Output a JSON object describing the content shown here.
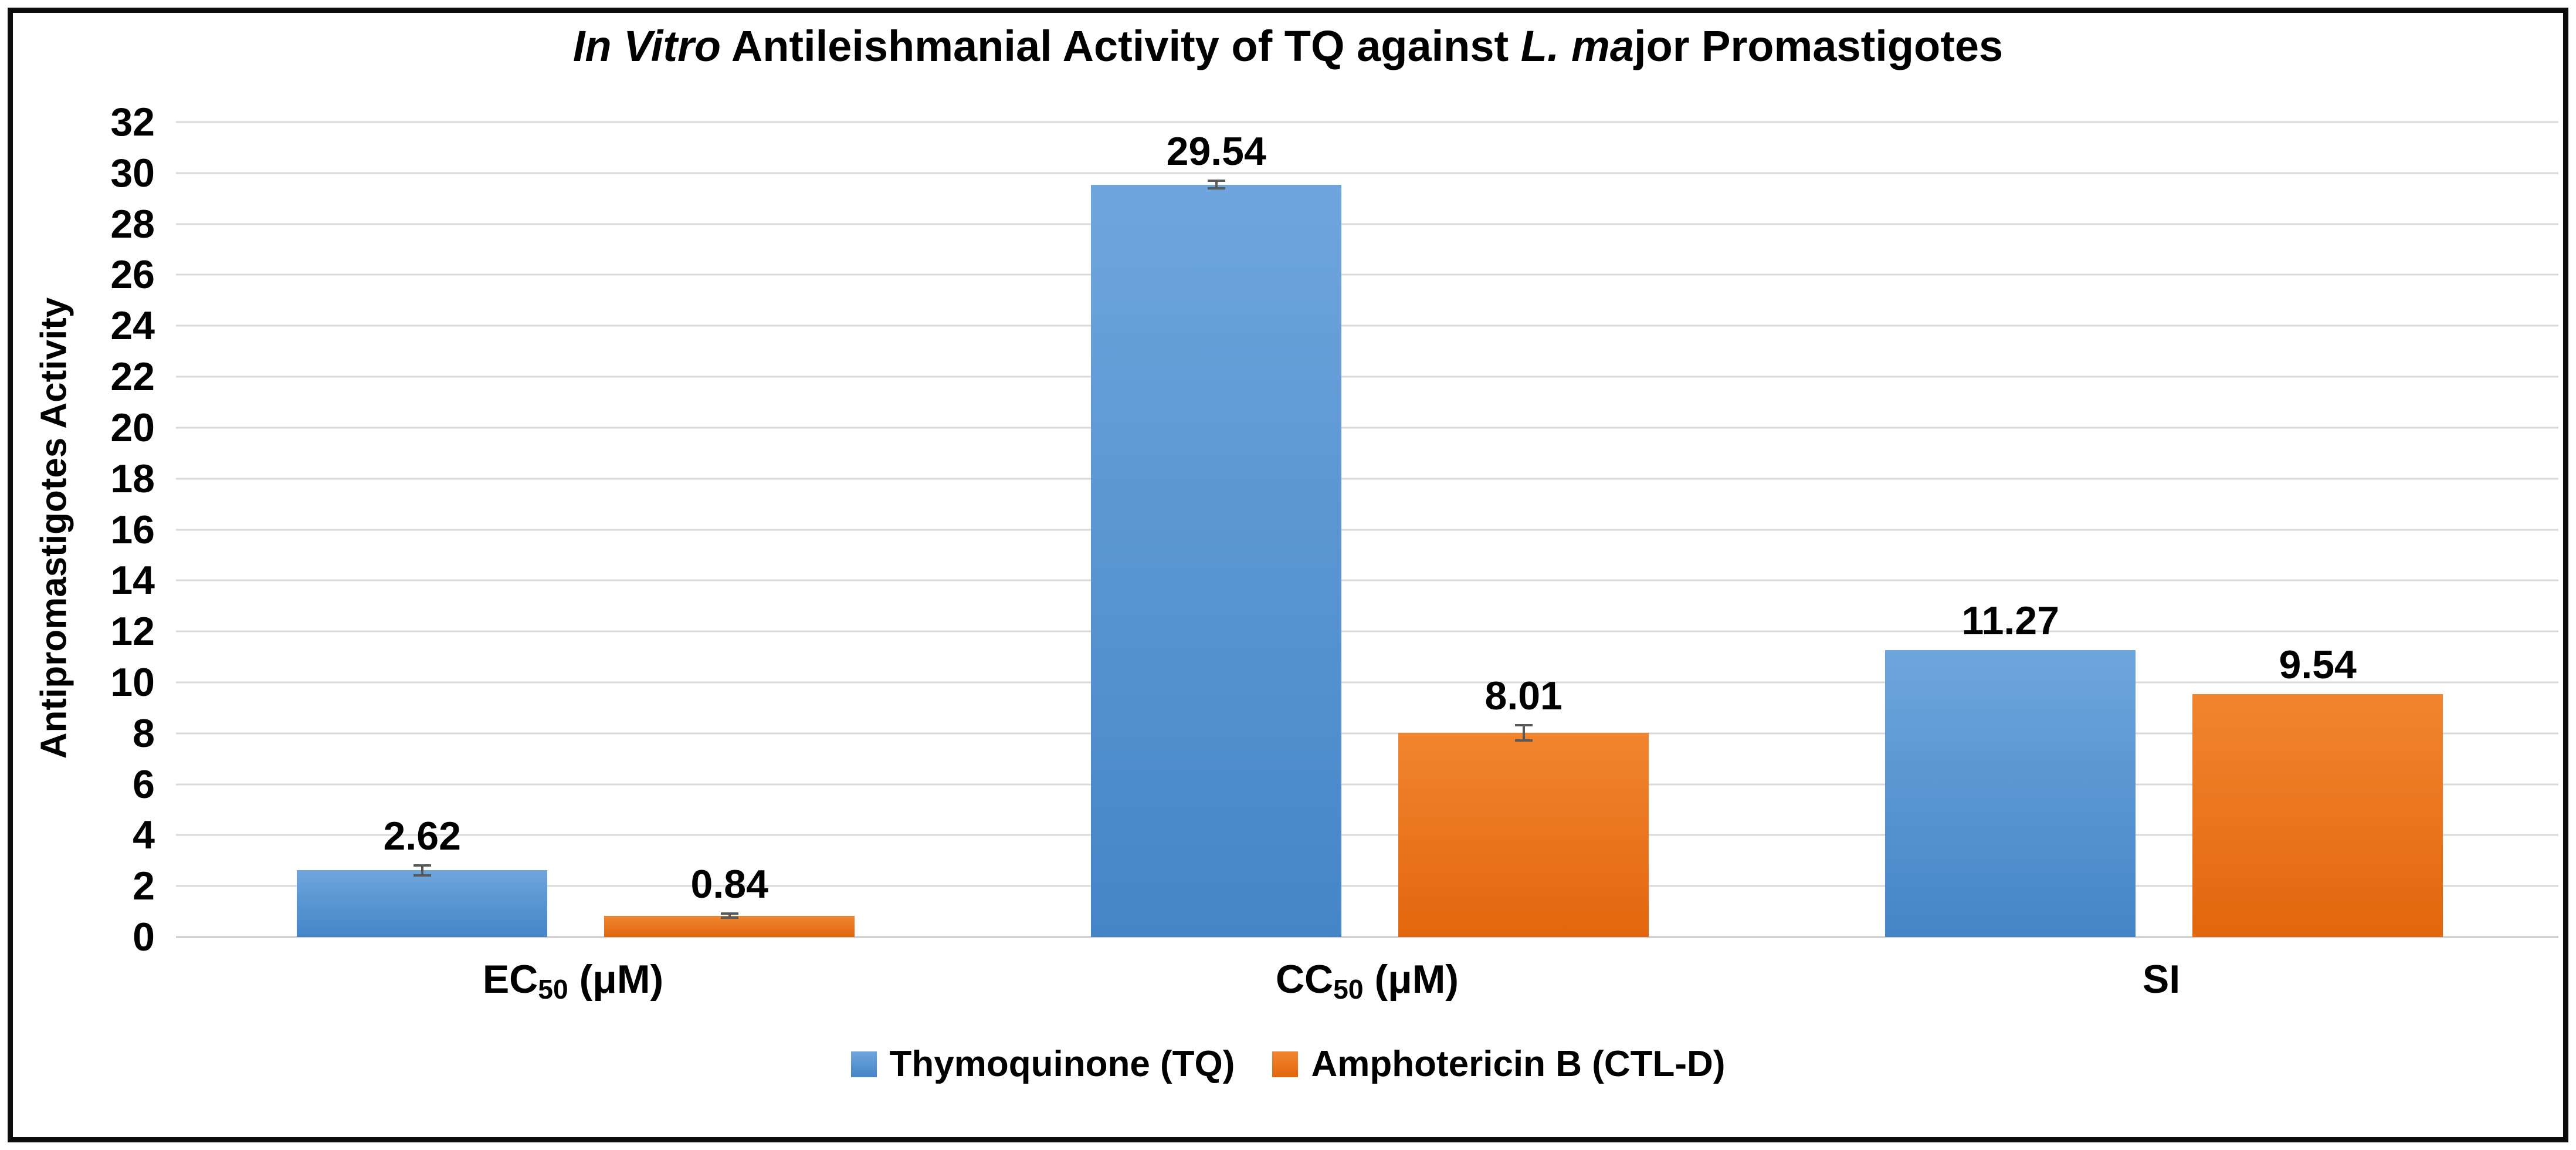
{
  "title": {
    "parts": [
      {
        "text": "In Vitro",
        "italic": true
      },
      {
        "text": " Antileishmanial Activity of TQ against ",
        "italic": false
      },
      {
        "text": "L. ma",
        "italic": true
      },
      {
        "text": "jor Promastigotes",
        "italic": false
      }
    ]
  },
  "y_axis": {
    "label": "Antipromastigotes Activity"
  },
  "x_axis": {
    "categories_rich": [
      {
        "base": "EC",
        "sub": "50",
        "suffix": " (μM)"
      },
      {
        "base": "CC",
        "sub": "50",
        "suffix": " (μM)"
      },
      {
        "base": "SI",
        "sub": "",
        "suffix": ""
      }
    ]
  },
  "legend": {
    "items": [
      {
        "label": "Thymoquinone (TQ)",
        "swatch": "blue"
      },
      {
        "label": "Amphotericin B (CTL-D)",
        "swatch": "orange"
      }
    ]
  },
  "colors": {
    "blue_top": "#6FA5DC",
    "blue_bottom": "#4485C8",
    "orange_top": "#F1852F",
    "orange_bottom": "#E2660E",
    "grid": "#D9D9D9",
    "grid_baseline": "#C9C9C9",
    "error": "#595959",
    "frame": "#0C0C0C"
  },
  "chart_data": {
    "type": "bar",
    "title": "In Vitro Antileishmanial Activity of TQ against L. major Promastigotes",
    "categories": [
      "EC50 (μM)",
      "CC50 (μM)",
      "SI"
    ],
    "series": [
      {
        "name": "Thymoquinone (TQ)",
        "values": [
          2.62,
          29.54,
          11.27
        ],
        "errors": [
          0.2,
          0.15,
          null
        ],
        "swatch": "blue"
      },
      {
        "name": "Amphotericin B (CTL-D)",
        "values": [
          0.84,
          8.01,
          9.54
        ],
        "errors": [
          0.08,
          0.3,
          null
        ],
        "swatch": "orange"
      }
    ],
    "data_labels": [
      [
        "2.62",
        "29.54",
        "11.27"
      ],
      [
        "0.84",
        "8.01",
        "9.54"
      ]
    ],
    "xlabel": "",
    "ylabel": "Antipromastigotes Activity",
    "ylim": [
      0,
      32
    ],
    "ytick_step": 2,
    "grid": true,
    "legend_position": "bottom"
  }
}
